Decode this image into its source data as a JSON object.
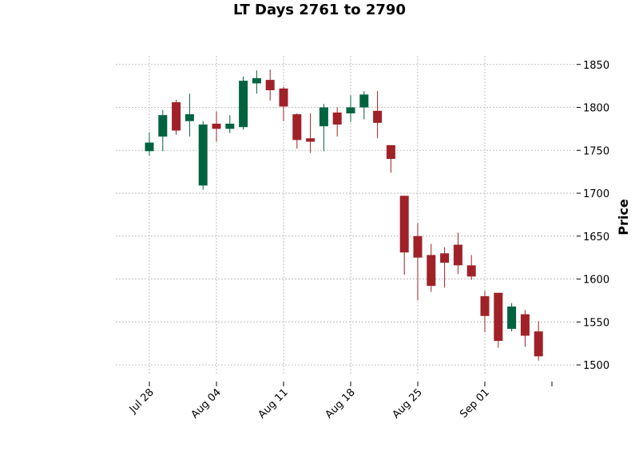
{
  "chart_data": {
    "type": "candlestick",
    "title": "LT Days 2761 to 2790",
    "xlabel": "",
    "ylabel": "Price",
    "ylim": [
      1488,
      1860
    ],
    "y_ticks": [
      1500,
      1550,
      1600,
      1650,
      1700,
      1750,
      1800,
      1850
    ],
    "x_tick_labels": [
      "Jul 28",
      "Aug 04",
      "Aug 11",
      "Aug 18",
      "Aug 25",
      "Sep 01",
      ""
    ],
    "grid": true,
    "colors": {
      "up": "#006340",
      "down": "#a02128",
      "grid": "#b0b0b0"
    },
    "candles": [
      {
        "date": "2020-07-28",
        "open": 1749,
        "high": 1771,
        "low": 1744,
        "close": 1759
      },
      {
        "date": "2020-07-29",
        "open": 1766,
        "high": 1797,
        "low": 1749,
        "close": 1791
      },
      {
        "date": "2020-07-30",
        "open": 1806,
        "high": 1809,
        "low": 1768,
        "close": 1773
      },
      {
        "date": "2020-07-31",
        "open": 1784,
        "high": 1816,
        "low": 1766,
        "close": 1792
      },
      {
        "date": "2020-08-03",
        "open": 1709,
        "high": 1784,
        "low": 1704,
        "close": 1780
      },
      {
        "date": "2020-08-04",
        "open": 1781,
        "high": 1795,
        "low": 1760,
        "close": 1775
      },
      {
        "date": "2020-08-05",
        "open": 1775,
        "high": 1791,
        "low": 1770,
        "close": 1781
      },
      {
        "date": "2020-08-06",
        "open": 1777,
        "high": 1836,
        "low": 1774,
        "close": 1831
      },
      {
        "date": "2020-08-07",
        "open": 1828,
        "high": 1843,
        "low": 1816,
        "close": 1834
      },
      {
        "date": "2020-08-10",
        "open": 1832,
        "high": 1844,
        "low": 1808,
        "close": 1820
      },
      {
        "date": "2020-08-11",
        "open": 1822,
        "high": 1824,
        "low": 1784,
        "close": 1801
      },
      {
        "date": "2020-08-12",
        "open": 1792,
        "high": 1793,
        "low": 1752,
        "close": 1762
      },
      {
        "date": "2020-08-13",
        "open": 1764,
        "high": 1793,
        "low": 1747,
        "close": 1760
      },
      {
        "date": "2020-08-14",
        "open": 1778,
        "high": 1804,
        "low": 1749,
        "close": 1800
      },
      {
        "date": "2020-08-17",
        "open": 1794,
        "high": 1800,
        "low": 1766,
        "close": 1780
      },
      {
        "date": "2020-08-18",
        "open": 1793,
        "high": 1814,
        "low": 1783,
        "close": 1800
      },
      {
        "date": "2020-08-19",
        "open": 1800,
        "high": 1819,
        "low": 1786,
        "close": 1815
      },
      {
        "date": "2020-08-20",
        "open": 1796,
        "high": 1819,
        "low": 1764,
        "close": 1782
      },
      {
        "date": "2020-08-21",
        "open": 1756,
        "high": 1756,
        "low": 1724,
        "close": 1740
      },
      {
        "date": "2020-08-24",
        "open": 1697,
        "high": 1697,
        "low": 1605,
        "close": 1631
      },
      {
        "date": "2020-08-25",
        "open": 1650,
        "high": 1665,
        "low": 1575,
        "close": 1625
      },
      {
        "date": "2020-08-26",
        "open": 1628,
        "high": 1641,
        "low": 1585,
        "close": 1592
      },
      {
        "date": "2020-08-27",
        "open": 1630,
        "high": 1637,
        "low": 1590,
        "close": 1619
      },
      {
        "date": "2020-08-28",
        "open": 1640,
        "high": 1654,
        "low": 1606,
        "close": 1616
      },
      {
        "date": "2020-08-31",
        "open": 1616,
        "high": 1628,
        "low": 1599,
        "close": 1603
      },
      {
        "date": "2020-09-01",
        "open": 1580,
        "high": 1586,
        "low": 1538,
        "close": 1557
      },
      {
        "date": "2020-09-02",
        "open": 1584,
        "high": 1584,
        "low": 1520,
        "close": 1528
      },
      {
        "date": "2020-09-03",
        "open": 1542,
        "high": 1572,
        "low": 1539,
        "close": 1568
      },
      {
        "date": "2020-09-04",
        "open": 1559,
        "high": 1564,
        "low": 1521,
        "close": 1534
      },
      {
        "date": "2020-09-07",
        "open": 1539,
        "high": 1551,
        "low": 1505,
        "close": 1510
      }
    ]
  }
}
